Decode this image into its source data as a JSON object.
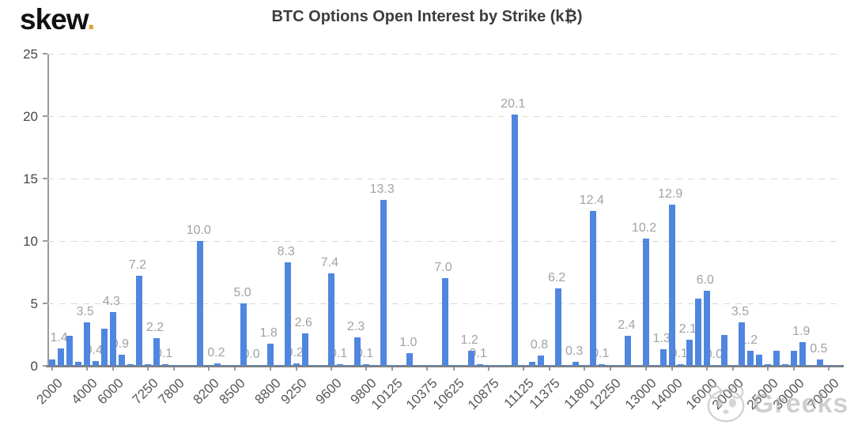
{
  "logo": {
    "text": "skew",
    "dot": "."
  },
  "watermark": {
    "icon": "panda-icon",
    "text": "Greeks"
  },
  "chart_data": {
    "type": "bar",
    "title": "BTC Options Open Interest by Strike (k₿)",
    "xlabel": "",
    "ylabel": "",
    "ylim": [
      0,
      25
    ],
    "yticks": [
      0,
      5,
      10,
      15,
      20,
      25
    ],
    "grid": "horizontal-dashed",
    "legend": "none",
    "bar_color": "#4f86e0",
    "value_label_color": "#a2a2a2",
    "categories": [
      "2000",
      "4000",
      "6000",
      "7250",
      "7800",
      "8200",
      "8500",
      "8800",
      "9250",
      "9600",
      "9800",
      "10125",
      "10375",
      "10625",
      "10875",
      "11125",
      "11375",
      "11800",
      "12250",
      "13000",
      "14000",
      "16000",
      "20000",
      "25000",
      "30000",
      "70000"
    ],
    "values_by_strike": [
      1.4,
      3.5,
      4.3,
      7.2,
      2.2,
      10.0,
      5.0,
      1.8,
      8.3,
      7.4,
      2.3,
      13.3,
      1.0,
      7.0,
      1.2,
      20.1,
      6.2,
      12.4,
      2.4,
      10.2,
      12.9,
      6.0,
      3.5,
      1.2,
      1.9,
      0.5
    ],
    "tick_indices": [
      0,
      4,
      7,
      11,
      14,
      18,
      21,
      25,
      28,
      32,
      36,
      39,
      43,
      46,
      50,
      54,
      57,
      61,
      64,
      68,
      71,
      75,
      78,
      82,
      85,
      89
    ],
    "bars": [
      [
        0.5,
        ""
      ],
      [
        1.4,
        "1.4"
      ],
      [
        2.4,
        ""
      ],
      [
        0.3,
        ""
      ],
      [
        3.5,
        "3.5"
      ],
      [
        0.4,
        "0.4"
      ],
      [
        3.0,
        ""
      ],
      [
        4.3,
        "4.3"
      ],
      [
        0.9,
        "0.9"
      ],
      [
        0.15,
        ""
      ],
      [
        7.2,
        "7.2"
      ],
      [
        0.1,
        ""
      ],
      [
        2.2,
        "2.2"
      ],
      [
        0.1,
        "0.1"
      ],
      [
        0.05,
        ""
      ],
      [
        0.05,
        ""
      ],
      [
        0.05,
        ""
      ],
      [
        10.0,
        "10.0"
      ],
      [
        0.05,
        ""
      ],
      [
        0.2,
        "0.2"
      ],
      [
        0.05,
        ""
      ],
      [
        0.05,
        ""
      ],
      [
        5.0,
        "5.0"
      ],
      [
        0.05,
        "0.0"
      ],
      [
        0.05,
        ""
      ],
      [
        1.8,
        "1.8"
      ],
      [
        0.05,
        ""
      ],
      [
        8.3,
        "8.3"
      ],
      [
        0.2,
        "0.2"
      ],
      [
        2.6,
        "2.6"
      ],
      [
        0.05,
        ""
      ],
      [
        0.05,
        ""
      ],
      [
        7.4,
        "7.4"
      ],
      [
        0.1,
        "0.1"
      ],
      [
        0.05,
        ""
      ],
      [
        2.3,
        "2.3"
      ],
      [
        0.1,
        "0.1"
      ],
      [
        0.05,
        ""
      ],
      [
        13.3,
        "13.3"
      ],
      [
        0.05,
        ""
      ],
      [
        0.05,
        ""
      ],
      [
        1.0,
        "1.0"
      ],
      [
        0.05,
        ""
      ],
      [
        0.05,
        ""
      ],
      [
        0.05,
        ""
      ],
      [
        7.0,
        "7.0"
      ],
      [
        0.05,
        ""
      ],
      [
        0.05,
        ""
      ],
      [
        1.2,
        "1.2"
      ],
      [
        0.1,
        "0.1"
      ],
      [
        0.05,
        ""
      ],
      [
        0.05,
        ""
      ],
      [
        0.05,
        ""
      ],
      [
        20.1,
        "20.1"
      ],
      [
        0.05,
        ""
      ],
      [
        0.3,
        ""
      ],
      [
        0.8,
        "0.8"
      ],
      [
        0.05,
        ""
      ],
      [
        6.2,
        "6.2"
      ],
      [
        0.05,
        ""
      ],
      [
        0.3,
        "0.3"
      ],
      [
        0.05,
        ""
      ],
      [
        12.4,
        "12.4"
      ],
      [
        0.1,
        "0.1"
      ],
      [
        0.05,
        ""
      ],
      [
        0.05,
        ""
      ],
      [
        2.4,
        "2.4"
      ],
      [
        0.05,
        ""
      ],
      [
        10.2,
        "10.2"
      ],
      [
        0.05,
        ""
      ],
      [
        1.3,
        "1.3"
      ],
      [
        12.9,
        "12.9"
      ],
      [
        0.1,
        "0.1"
      ],
      [
        2.1,
        "2.1"
      ],
      [
        5.4,
        ""
      ],
      [
        6.0,
        "6.0"
      ],
      [
        0.05,
        "0.0"
      ],
      [
        2.5,
        ""
      ],
      [
        0.05,
        ""
      ],
      [
        3.5,
        "3.5"
      ],
      [
        1.2,
        "1.2"
      ],
      [
        0.9,
        ""
      ],
      [
        0.1,
        ""
      ],
      [
        1.2,
        ""
      ],
      [
        0.1,
        ""
      ],
      [
        1.2,
        ""
      ],
      [
        1.9,
        "1.9"
      ],
      [
        0.05,
        ""
      ],
      [
        0.5,
        "0.5"
      ],
      [
        0.05,
        ""
      ],
      [
        0.05,
        ""
      ]
    ]
  }
}
